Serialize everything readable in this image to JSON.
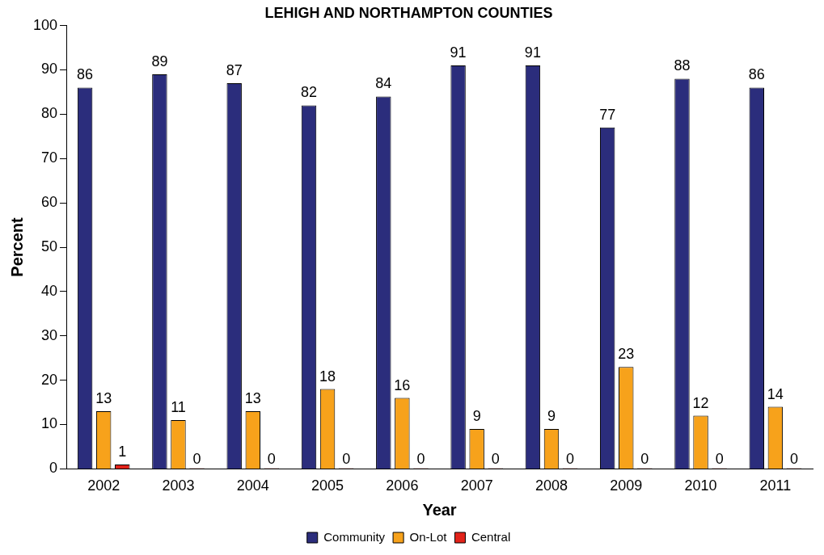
{
  "chart_data": {
    "type": "bar",
    "title": "LEHIGH AND NORTHAMPTON COUNTIES",
    "xlabel": "Year",
    "ylabel": "Percent",
    "categories": [
      "2002",
      "2003",
      "2004",
      "2005",
      "2006",
      "2007",
      "2008",
      "2009",
      "2010",
      "2011"
    ],
    "series": [
      {
        "name": "Community",
        "color": "#2b2d7c",
        "values": [
          86,
          89,
          87,
          82,
          84,
          91,
          91,
          77,
          88,
          86
        ]
      },
      {
        "name": "On-Lot",
        "color": "#f7a21b",
        "values": [
          13,
          11,
          13,
          18,
          16,
          9,
          9,
          23,
          12,
          14
        ]
      },
      {
        "name": "Central",
        "color": "#e2231a",
        "values": [
          1,
          0,
          0,
          0,
          0,
          0,
          0,
          0,
          0,
          0
        ]
      }
    ],
    "ylim": [
      0,
      100
    ],
    "yticks": [
      0,
      10,
      20,
      30,
      40,
      50,
      60,
      70,
      80,
      90,
      100
    ],
    "grid": false,
    "legend": "bottom",
    "data_labels": true
  }
}
